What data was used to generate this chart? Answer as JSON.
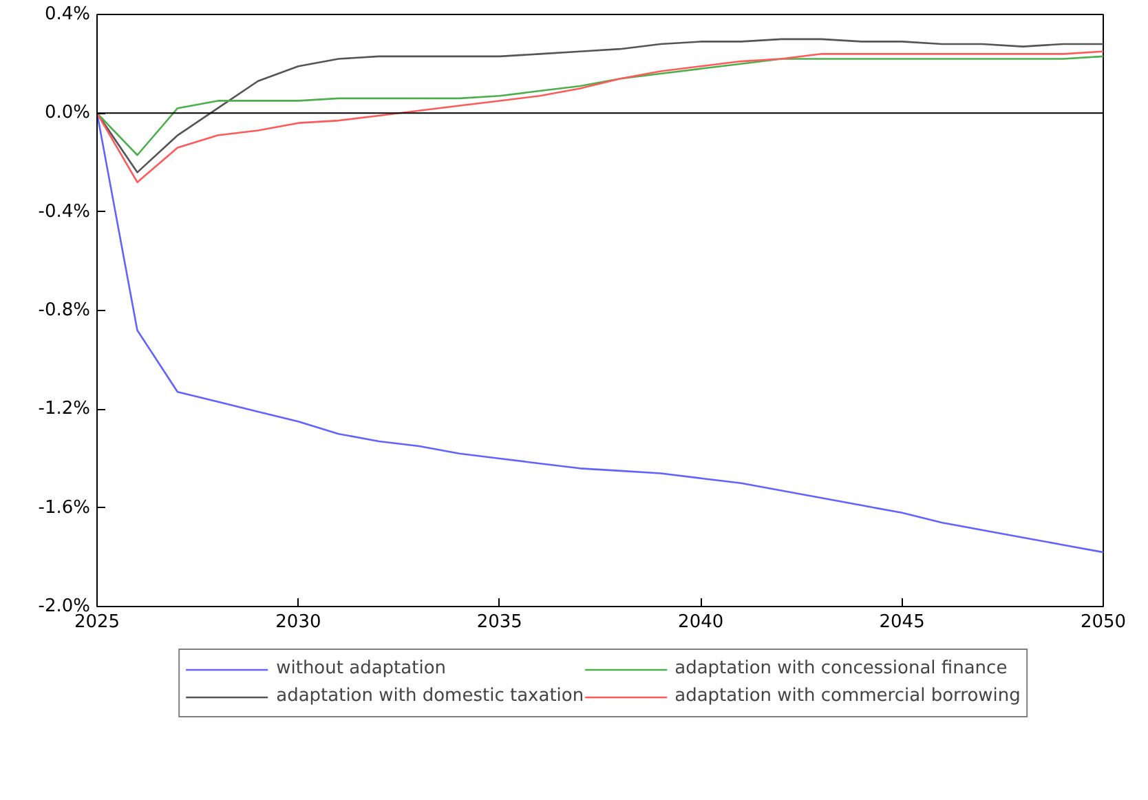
{
  "chart_data": {
    "type": "line",
    "x": [
      2025,
      2026,
      2027,
      2028,
      2029,
      2030,
      2031,
      2032,
      2033,
      2034,
      2035,
      2036,
      2037,
      2038,
      2039,
      2040,
      2041,
      2042,
      2043,
      2044,
      2045,
      2046,
      2047,
      2048,
      2049,
      2050
    ],
    "series": [
      {
        "name": "without adaptation",
        "color": "#6262ff",
        "values": [
          0,
          -0.88,
          -1.13,
          -1.17,
          -1.21,
          -1.25,
          -1.3,
          -1.33,
          -1.35,
          -1.38,
          -1.4,
          -1.42,
          -1.44,
          -1.45,
          -1.46,
          -1.48,
          -1.5,
          -1.53,
          -1.56,
          -1.59,
          -1.62,
          -1.66,
          -1.69,
          -1.72,
          -1.75,
          -1.78
        ]
      },
      {
        "name": "adaptation with domestic taxation",
        "color": "#555555",
        "values": [
          0,
          -0.24,
          -0.09,
          0.02,
          0.13,
          0.19,
          0.22,
          0.23,
          0.23,
          0.23,
          0.23,
          0.24,
          0.25,
          0.26,
          0.28,
          0.29,
          0.29,
          0.3,
          0.3,
          0.29,
          0.29,
          0.28,
          0.28,
          0.27,
          0.28,
          0.28
        ]
      },
      {
        "name": "adaptation with concessional finance",
        "color": "#4caf4c",
        "values": [
          0,
          -0.17,
          0.02,
          0.05,
          0.05,
          0.05,
          0.06,
          0.06,
          0.06,
          0.06,
          0.07,
          0.09,
          0.11,
          0.14,
          0.16,
          0.18,
          0.2,
          0.22,
          0.22,
          0.22,
          0.22,
          0.22,
          0.22,
          0.22,
          0.22,
          0.23
        ]
      },
      {
        "name": "adaptation with commercial borrowing",
        "color": "#ff5a5a",
        "values": [
          0,
          -0.28,
          -0.14,
          -0.09,
          -0.07,
          -0.04,
          -0.03,
          -0.01,
          0.01,
          0.03,
          0.05,
          0.07,
          0.1,
          0.14,
          0.17,
          0.19,
          0.21,
          0.22,
          0.24,
          0.24,
          0.24,
          0.24,
          0.24,
          0.24,
          0.24,
          0.25
        ]
      }
    ],
    "xlim": [
      2025,
      2050
    ],
    "xticks": [
      2025,
      2030,
      2035,
      2040,
      2045,
      2050
    ],
    "ylim": [
      -2.0,
      0.4
    ],
    "yticks": [
      {
        "value": -2.0,
        "label": "-2.0%"
      },
      {
        "value": -1.6,
        "label": "-1.6%"
      },
      {
        "value": -1.2,
        "label": "-1.2%"
      },
      {
        "value": -0.8,
        "label": "-0.8%"
      },
      {
        "value": -0.4,
        "label": "-0.4%"
      },
      {
        "value": 0.0,
        "label": "0.0%"
      },
      {
        "value": 0.4,
        "label": "0.4%"
      }
    ],
    "ref_lines": [
      {
        "axis": "y",
        "value": 0,
        "color": "#000000"
      }
    ],
    "legend": "bottom"
  }
}
